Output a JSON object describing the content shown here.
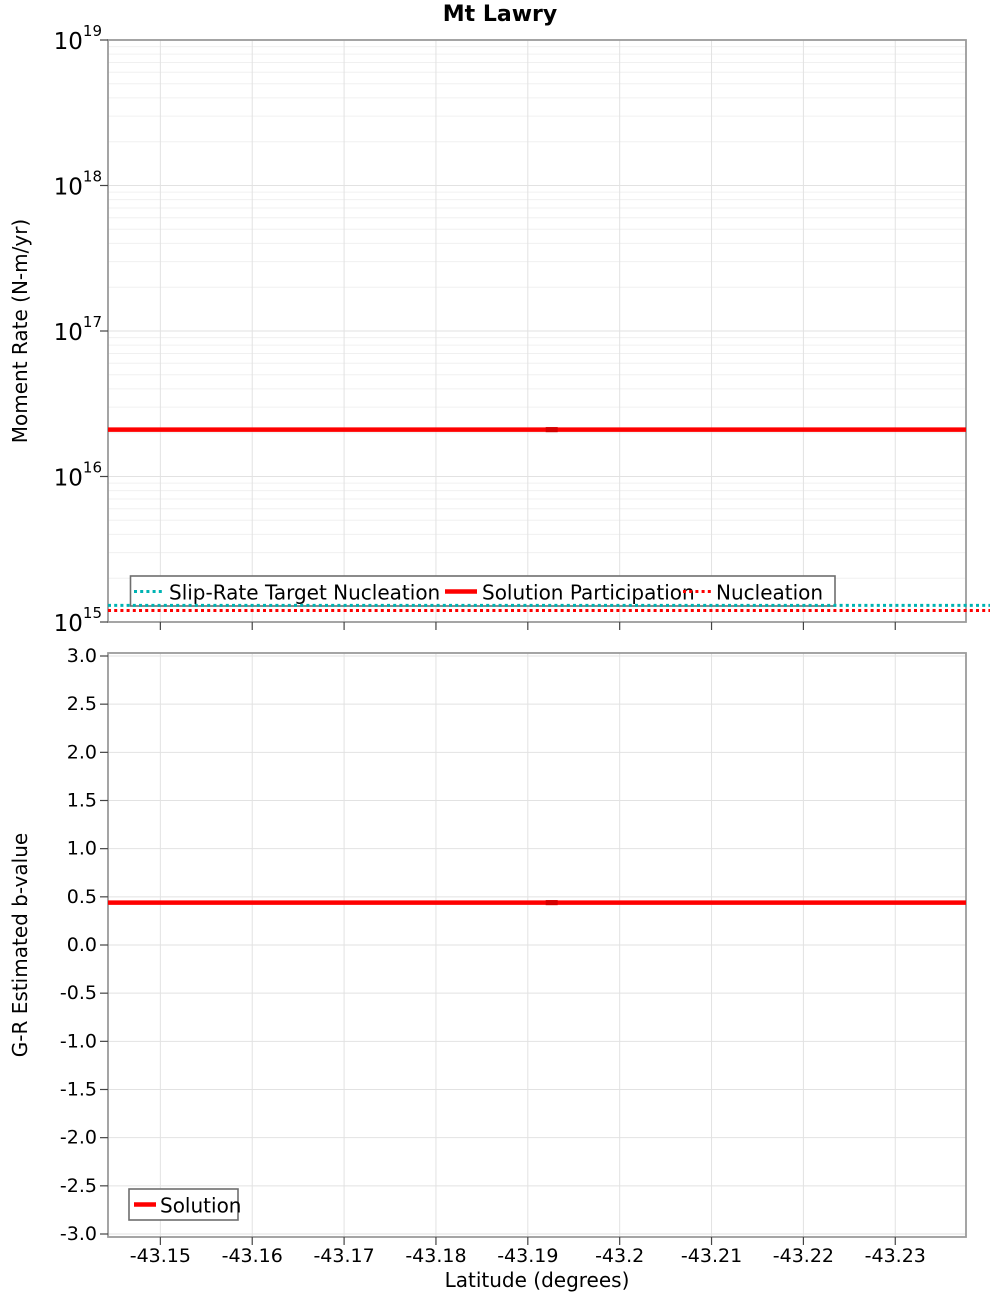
{
  "chart_data": [
    {
      "type": "line",
      "title": "Mt Lawry",
      "ylabel": "Moment Rate (N-m/yr)",
      "yscale": "log",
      "ylim": [
        1000000000000000.0,
        1e+19
      ],
      "ytick_exponents": [
        19,
        18,
        17,
        16,
        15
      ],
      "x_range": [
        -43.1443,
        -43.2377
      ],
      "x_axis_reversed": true,
      "grid": "major+minor",
      "xticks": {
        "values": [
          -43.15,
          -43.16,
          -43.17,
          -43.18,
          -43.19,
          -43.2,
          -43.21,
          -43.22,
          -43.23
        ],
        "labels": [
          "-43.15",
          "-43.16",
          "-43.17",
          "-43.18",
          "-43.19",
          "-43.2",
          "-43.21",
          "-43.22",
          "-43.23"
        ],
        "show_labels": false
      },
      "series": [
        {
          "name": "Slip-Rate Target Nucleation",
          "color": "#00b3b3",
          "style": "dotted",
          "line_width": 3,
          "y_value": 1300000000000000.0
        },
        {
          "name": "Solution Participation",
          "color": "#fe0000",
          "style": "solid",
          "line_width": 4.5,
          "y_value": 2.1e+16,
          "marker_x": -43.1926,
          "marker_color": "#d60000"
        },
        {
          "name": "Nucleation",
          "color": "#fe0000",
          "style": "dotted",
          "line_width": 3,
          "y_value": 1200000000000000.0
        }
      ],
      "legend": {
        "position": "bottom-left",
        "entries": [
          "Slip-Rate Target Nucleation",
          "Solution Participation",
          "Nucleation"
        ]
      }
    },
    {
      "type": "line",
      "ylabel": "G-R Estimated b-value",
      "xlabel": "Latitude (degrees)",
      "ylim": [
        -3.0,
        3.0
      ],
      "yticks": {
        "values": [
          3.0,
          2.5,
          2.0,
          1.5,
          1.0,
          0.5,
          0.0,
          -0.5,
          -1.0,
          -1.5,
          -2.0,
          -2.5,
          -3.0
        ],
        "labels": [
          "3.0",
          "2.5",
          "2.0",
          "1.5",
          "1.0",
          "0.5",
          "0.0",
          "-0.5",
          "-1.0",
          "-1.5",
          "-2.0",
          "-2.5",
          "-3.0"
        ]
      },
      "x_range": [
        -43.1443,
        -43.2377
      ],
      "x_axis_reversed": true,
      "grid": "major",
      "xticks": {
        "values": [
          -43.15,
          -43.16,
          -43.17,
          -43.18,
          -43.19,
          -43.2,
          -43.21,
          -43.22,
          -43.23
        ],
        "labels": [
          "-43.15",
          "-43.16",
          "-43.17",
          "-43.18",
          "-43.19",
          "-43.2",
          "-43.21",
          "-43.22",
          "-43.23"
        ],
        "show_labels": true
      },
      "series": [
        {
          "name": "Solution",
          "color": "#fe0000",
          "style": "solid",
          "line_width": 4.5,
          "y_value": 0.44,
          "marker_x": -43.1926,
          "marker_color": "#d60000"
        }
      ],
      "legend": {
        "position": "bottom-left",
        "entries": [
          "Solution"
        ]
      }
    }
  ],
  "colors": {
    "background": "#ffffff",
    "grid_major": "#e2e2e2",
    "grid_minor": "#f0f0f0",
    "axis_border": "#9b9b9b",
    "tick": "#444444",
    "text": "#000000",
    "legend_border": "#6e6e6e",
    "legend_background": "#ffffff"
  }
}
